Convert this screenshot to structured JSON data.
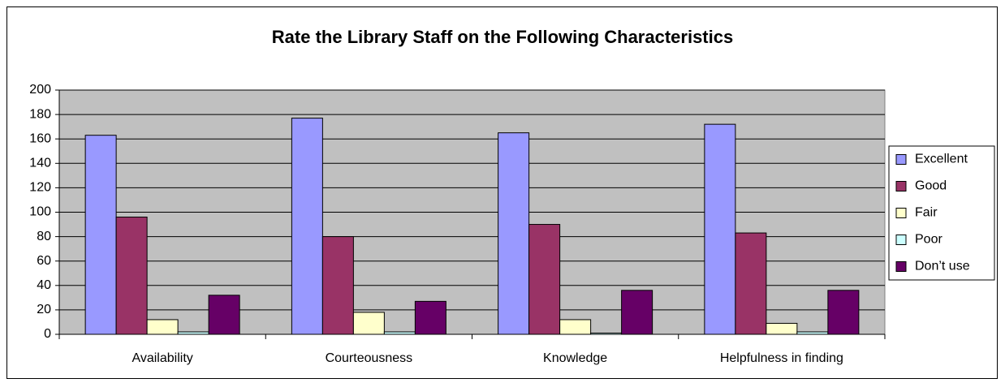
{
  "chart_data": {
    "type": "bar",
    "title": "Rate the Library Staff on the Following Characteristics",
    "categories": [
      "Availability",
      "Courteousness",
      "Knowledge",
      "Helpfulness in finding"
    ],
    "series": [
      {
        "name": "Excellent",
        "color": "#9999ff",
        "values": [
          163,
          177,
          165,
          172
        ]
      },
      {
        "name": "Good",
        "color": "#993366",
        "values": [
          96,
          80,
          90,
          83
        ]
      },
      {
        "name": "Fair",
        "color": "#ffffcc",
        "values": [
          12,
          18,
          12,
          9
        ]
      },
      {
        "name": "Poor",
        "color": "#ccffff",
        "values": [
          2,
          2,
          1,
          2
        ]
      },
      {
        "name": "Don’t use",
        "color": "#660066",
        "values": [
          32,
          27,
          36,
          36
        ]
      }
    ],
    "ylim": [
      0,
      200
    ],
    "yticks": [
      0,
      20,
      40,
      60,
      80,
      100,
      120,
      140,
      160,
      180,
      200
    ],
    "grid": true,
    "legend": "right"
  }
}
